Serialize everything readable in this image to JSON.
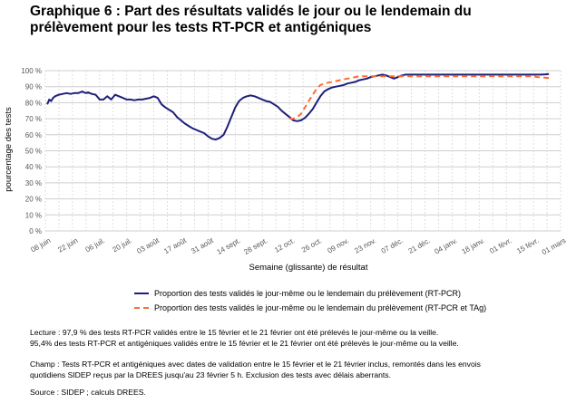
{
  "title_line1": "Graphique 6 : Part des résultats validés le jour ou le lendemain du",
  "title_line2": "prélèvement pour les tests RT-PCR et antigéniques",
  "notes": {
    "lecture_line1": "Lecture : 97,9 % des tests RT-PCR validés entre le 15 février et le 21 février ont été prélevés le jour-même ou la veille.",
    "lecture_line2": "95,4% des tests RT-PCR et antigéniques validés entre le 15 février et le 21 février ont été prélevés le jour-même ou la veille.",
    "champ_line1": "Champ : Tests RT-PCR et antigéniques avec dates de validation entre le 15 février et le 21 février inclus, remontés dans les envois",
    "champ_line2": "quotidiens SIDEP reçus par la DREES jusqu'au 23 février 5 h. Exclusion des tests avec délais aberrants.",
    "source": "Source : SIDEP ; calculs DREES."
  },
  "chart_data": {
    "type": "line",
    "xlabel": "Semaine (glissante) de résultat",
    "ylabel": "pourcentage des tests",
    "ylim": [
      0,
      100
    ],
    "y_ticks": [
      "0 %",
      "10 %",
      "20 %",
      "30 %",
      "40 %",
      "50 %",
      "60 %",
      "70 %",
      "80 %",
      "90 %",
      "100 %"
    ],
    "x_ticks": [
      "08 juin",
      "22 juin",
      "06 juil.",
      "20 juil.",
      "03 août",
      "17 août",
      "31 août",
      "14 sept.",
      "28 sept.",
      "12 oct.",
      "26 oct.",
      "09 nov.",
      "23 nov.",
      "07 déc.",
      "21 déc.",
      "04 janv.",
      "18 janv.",
      "01 févr.",
      "15 févr.",
      "01 mars"
    ],
    "grid": true,
    "legend_position": "bottom",
    "series": [
      {
        "name": "Proportion des tests validés le jour-même ou le lendemain du prélèvement (RT-PCR)",
        "color": "#1f1f7a",
        "style": "solid",
        "x": [
          1,
          2,
          3,
          4,
          5,
          7,
          9,
          11,
          13,
          15,
          17,
          19,
          20,
          21,
          22,
          23,
          24,
          26,
          28,
          30,
          32,
          34,
          36,
          38,
          40,
          42,
          44,
          46,
          48,
          50,
          52,
          54,
          56,
          58,
          60,
          62,
          64,
          66,
          68,
          70,
          72,
          74,
          76,
          78,
          80,
          82,
          84,
          86,
          88,
          90,
          92,
          94,
          96,
          98,
          100,
          102,
          104,
          106,
          108,
          110,
          112,
          114,
          116,
          118,
          120,
          122,
          124,
          126,
          128,
          130,
          132,
          134,
          136,
          138,
          140,
          142,
          144,
          146,
          148,
          150,
          152,
          154,
          156,
          158,
          160,
          162,
          164,
          166,
          168,
          170,
          172,
          174,
          176,
          178,
          180,
          182,
          184,
          186,
          188,
          190,
          192,
          194,
          196,
          198,
          200,
          202,
          204,
          206,
          208,
          210,
          212,
          214,
          216,
          218,
          220,
          222,
          224,
          226,
          228,
          230,
          232,
          234,
          236,
          238,
          240,
          242,
          244,
          246,
          248,
          250,
          252,
          254,
          256,
          258,
          260
        ],
        "y": [
          79,
          82,
          81,
          83,
          84,
          85,
          85.5,
          86,
          85.5,
          86,
          86,
          87,
          86.5,
          86,
          86.5,
          86,
          85.5,
          85,
          82,
          82,
          84,
          82,
          85,
          84,
          83,
          82,
          82,
          81.5,
          82,
          82,
          82.5,
          83,
          84,
          83,
          79,
          77,
          75.5,
          74,
          71,
          69,
          67,
          65.5,
          64,
          63,
          62,
          61,
          59,
          57.5,
          57,
          58,
          60,
          65,
          71,
          77,
          81,
          83,
          84,
          84.5,
          84,
          83,
          82,
          81,
          80.5,
          79,
          77.5,
          75,
          73,
          71,
          69,
          68.5,
          69,
          70.5,
          73,
          76,
          80,
          84,
          87,
          88.5,
          89.5,
          90,
          90.5,
          91,
          92,
          92.5,
          93,
          94,
          94.5,
          95,
          96,
          96.5,
          97,
          97.5,
          97,
          96,
          95,
          96,
          97,
          97.5,
          97.5,
          97.5,
          97.5,
          97.5,
          97.5,
          97.5,
          97.5,
          97.5,
          97.5,
          97.5,
          97.5,
          97.5,
          97.5,
          97.5,
          97.5,
          97.5,
          97.5,
          97.5,
          97.5,
          97.5,
          97.5,
          97.5,
          97.5,
          97.5,
          97.5,
          97.5,
          97.5,
          97.5,
          97.5,
          97.5,
          97.5,
          97.5,
          97.5,
          97.5,
          97.5,
          97.7,
          97.9
        ]
      },
      {
        "name": "Proportion des tests validés le jour-même ou le lendemain du prélèvement (RT-PCR et TAg)",
        "color": "#ff6a33",
        "style": "dashed",
        "x": [
          126,
          128,
          130,
          132,
          134,
          136,
          138,
          140,
          142,
          144,
          146,
          148,
          150,
          152,
          154,
          156,
          158,
          160,
          162,
          164,
          166,
          168,
          170,
          172,
          174,
          176,
          178,
          180,
          182,
          184,
          186,
          188,
          190,
          192,
          194,
          196,
          198,
          200,
          202,
          204,
          206,
          208,
          210,
          212,
          214,
          216,
          218,
          220,
          222,
          224,
          226,
          228,
          230,
          232,
          234,
          236,
          238,
          240,
          242,
          244,
          246,
          248,
          250,
          252,
          254,
          256,
          258,
          260
        ],
        "y": [
          70,
          70,
          71,
          73,
          77,
          81,
          85,
          88.5,
          91,
          92,
          92.5,
          93,
          93.5,
          94,
          94.5,
          95,
          95.5,
          96,
          96.5,
          96.5,
          96.5,
          96.5,
          96.5,
          96.5,
          96.5,
          96.5,
          96.5,
          96.5,
          96.5,
          96.5,
          96.5,
          96.5,
          96.5,
          96.5,
          96.5,
          96.5,
          96.5,
          96.5,
          96.5,
          96.5,
          96.5,
          96.5,
          96.5,
          96.5,
          96.5,
          96.5,
          96.5,
          96.5,
          96.5,
          96.5,
          96.5,
          96.5,
          96.5,
          96.5,
          96.5,
          96.5,
          96.5,
          96.5,
          96.5,
          96.5,
          96.5,
          96.5,
          96.5,
          96.5,
          96,
          95.8,
          95.6,
          95.4
        ]
      }
    ]
  }
}
